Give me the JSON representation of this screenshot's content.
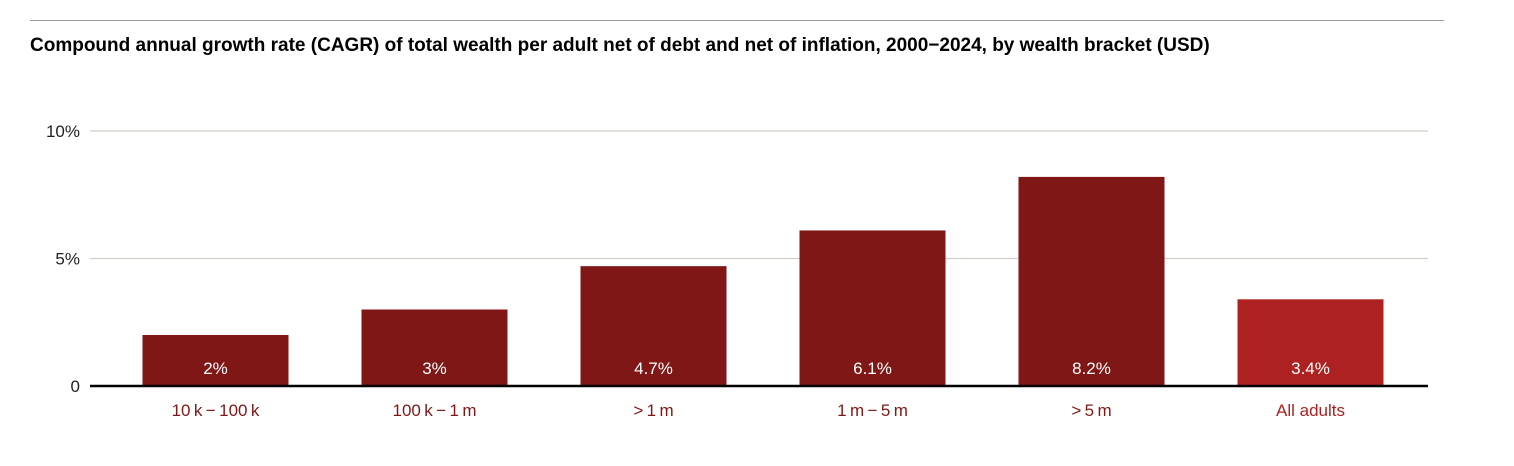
{
  "colors": {
    "bar": "#7f1716",
    "bar_highlight": "#ad2220",
    "category_label": "#7f1716",
    "category_label_highlight": "#ad2220",
    "gridline": "#cfcfc8",
    "axis": "#000000"
  },
  "chart_data": {
    "type": "bar",
    "title": "Compound annual growth rate (CAGR) of total wealth per adult net of debt and net of inflation, 2000−2024, by wealth bracket (USD)",
    "xlabel": "",
    "ylabel": "",
    "ylim": [
      0,
      10
    ],
    "yticks": [
      0,
      5,
      10
    ],
    "ytick_labels": [
      "0",
      "5%",
      "10%"
    ],
    "grid": true,
    "categories": [
      "10 k − 100 k",
      "100 k − 1 m",
      "> 1 m",
      "1 m − 5 m",
      "> 5 m",
      "All adults"
    ],
    "values": [
      2,
      3,
      4.7,
      6.1,
      8.2,
      3.4
    ],
    "data_labels": [
      "2%",
      "3%",
      "4.7%",
      "6.1%",
      "8.2%",
      "3.4%"
    ],
    "highlight_category": "All adults"
  }
}
